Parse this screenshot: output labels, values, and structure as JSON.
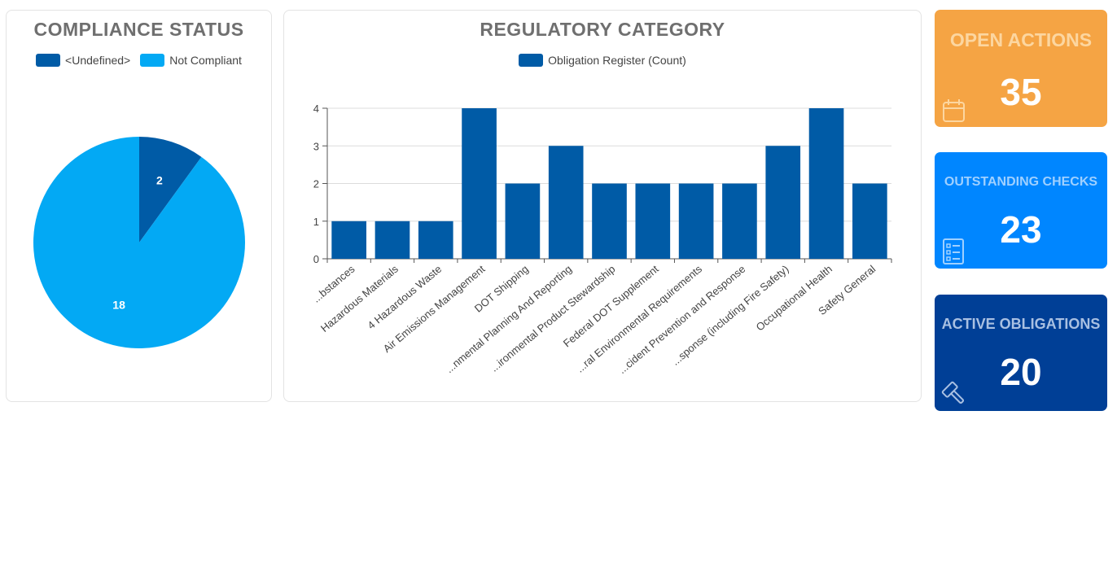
{
  "compliance_card": {
    "title": "COMPLIANCE STATUS",
    "legend": [
      {
        "label": "<Undefined>",
        "color": "#005ba6"
      },
      {
        "label": "Not Compliant",
        "color": "#03a9f4"
      }
    ]
  },
  "category_card": {
    "title": "REGULATORY CATEGORY",
    "legend": [
      {
        "label": "Obligation Register (Count)",
        "color": "#005ba6"
      }
    ]
  },
  "kpis": {
    "open_actions": {
      "label": "OPEN ACTIONS",
      "value": "35",
      "bg": "#f5a444",
      "label_color": "#fcd6a0",
      "icon": "calendar-icon"
    },
    "outstanding_checks": {
      "label": "OUTSTANDING CHECKS",
      "value": "23",
      "bg": "#0086ff",
      "label_color": "#9fd0ff",
      "icon": "checklist-icon"
    },
    "active_obligations": {
      "label": "ACTIVE OBLIGATIONS",
      "value": "20",
      "bg": "#003f96",
      "label_color": "#a9c0e2",
      "icon": "gavel-icon"
    }
  },
  "chart_data": [
    {
      "type": "pie",
      "title": "COMPLIANCE STATUS",
      "categories": [
        "<Undefined>",
        "Not Compliant"
      ],
      "values": [
        2,
        18
      ],
      "colors": [
        "#005ba6",
        "#03a9f4"
      ],
      "legend": "top"
    },
    {
      "type": "bar",
      "title": "REGULATORY CATEGORY",
      "categories": [
        "...bstances",
        "Hazardous Materials",
        "4  Hazardous Waste",
        "Air Emissions Management",
        "DOT Shipping",
        "...nmental Planning And Reporting",
        "...ironmental Product Stewardship",
        "Federal DOT Supplement",
        "...ral Environmental Requirements",
        "...cident Prevention and Response",
        "...sponse (including Fire Safety)",
        "Occupational Health",
        "Safety General"
      ],
      "series": [
        {
          "name": "Obligation Register (Count)",
          "values": [
            1,
            1,
            1,
            4,
            2,
            3,
            2,
            2,
            2,
            2,
            3,
            4,
            2
          ],
          "color": "#005ba6"
        }
      ],
      "y_ticks": [
        "0",
        "1",
        "2",
        "3",
        "4"
      ],
      "ylim": [
        0,
        4
      ],
      "grid": true,
      "legend": "top"
    }
  ]
}
